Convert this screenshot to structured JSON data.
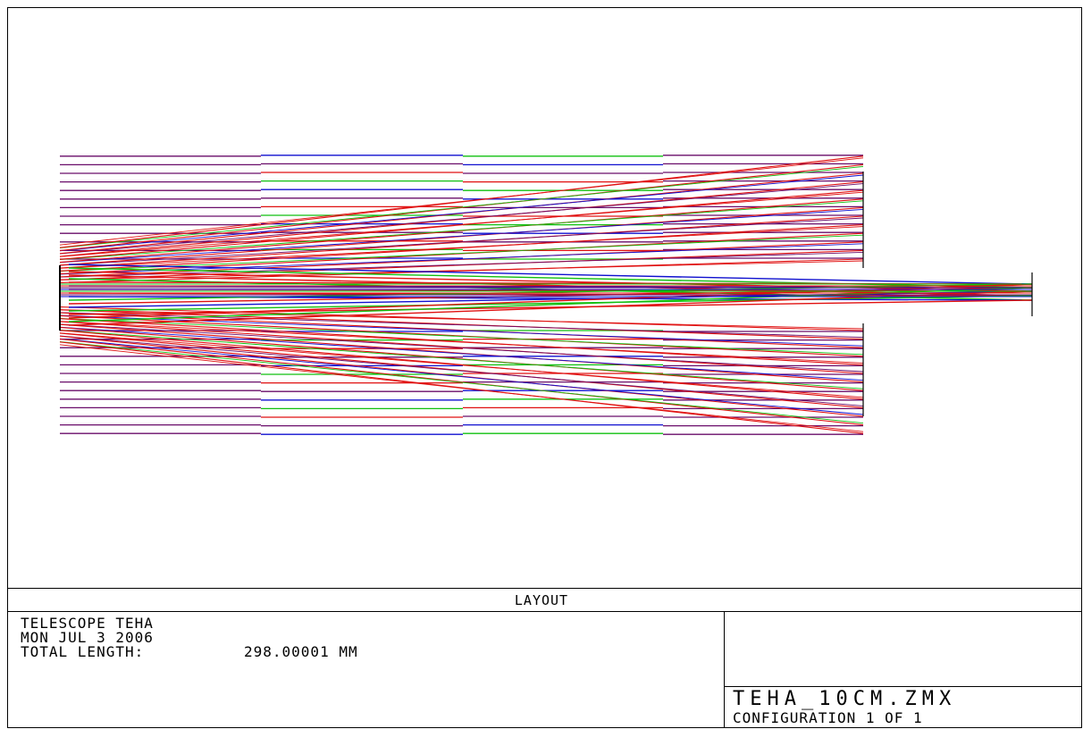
{
  "layout": {
    "title": "LAYOUT",
    "info": {
      "line1": "TELESCOPE TEHA",
      "line2": "MON JUL 3 2006",
      "line3_label": "TOTAL LENGTH:",
      "line3_value": "298.00001 MM"
    },
    "file": {
      "name": "TEHA_10CM.ZMX",
      "config": "CONFIGURATION 1 OF 1"
    }
  },
  "diagram": {
    "wavelength_colors": [
      "#1010d0",
      "#10c010",
      "#e01010",
      "#6a0d6a"
    ],
    "line_color": "#000000"
  }
}
